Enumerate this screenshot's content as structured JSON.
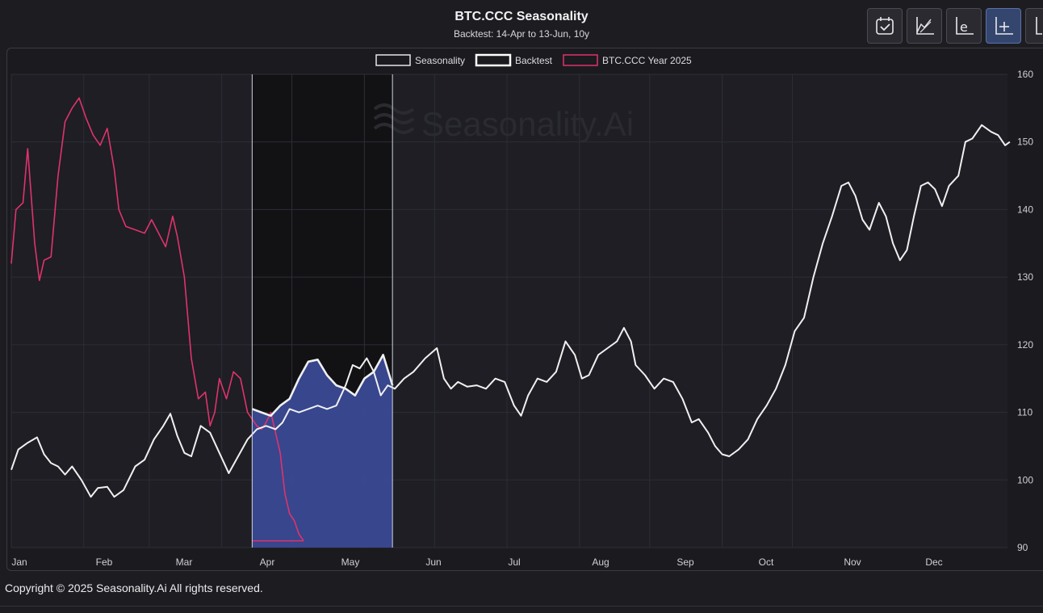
{
  "header": {
    "title": "BTC.CCC Seasonality",
    "subtitle": "Backtest: 14-Apr to 13-Jun, 10y"
  },
  "toolbar": {
    "buttons": [
      {
        "name": "calendar-check-icon",
        "active": false
      },
      {
        "name": "chart-area-icon",
        "active": false
      },
      {
        "name": "log-scale-icon",
        "active": false
      },
      {
        "name": "crosshair-plus-icon",
        "active": true
      },
      {
        "name": "axis-icon",
        "active": false
      }
    ]
  },
  "watermark": "Seasonality.Ai",
  "footer": {
    "copyright": "Copyright © 2025 Seasonality.Ai All rights reserved."
  },
  "colors": {
    "seasonality": "#f0f0f0",
    "backtest_fill": "#3a4a94",
    "year2025": "#e0336b",
    "grid": "#2d2d36",
    "plot_bg": "#1e1e24",
    "backtest_bg": "#121215"
  },
  "chart_data": {
    "type": "line",
    "legend": {
      "position": "top-center",
      "entries": [
        "Seasonality",
        "Backtest",
        "BTC.CCC Year 2025"
      ]
    },
    "x_months": [
      "Jan",
      "Feb",
      "Mar",
      "Apr",
      "May",
      "Jun",
      "Jul",
      "Aug",
      "Sep",
      "Oct",
      "Nov",
      "Dec"
    ],
    "y_axis": {
      "side": "right",
      "min": 90,
      "max": 160,
      "ticks": [
        90,
        100,
        110,
        120,
        130,
        140,
        150,
        160
      ]
    },
    "grid": true,
    "backtest_window": {
      "start_day": 104,
      "end_day": 164,
      "label": "14-Apr to 13-Jun"
    },
    "series": [
      {
        "name": "Seasonality",
        "points": [
          [
            1,
            101.5
          ],
          [
            4,
            104.5
          ],
          [
            8,
            105.5
          ],
          [
            12,
            106.3
          ],
          [
            15,
            103.8
          ],
          [
            18,
            102.5
          ],
          [
            21,
            102
          ],
          [
            24,
            100.8
          ],
          [
            27,
            102
          ],
          [
            31,
            100
          ],
          [
            35,
            97.5
          ],
          [
            38,
            98.8
          ],
          [
            42,
            99
          ],
          [
            45,
            97.5
          ],
          [
            49,
            98.5
          ],
          [
            54,
            102
          ],
          [
            58,
            103
          ],
          [
            62,
            106
          ],
          [
            66,
            108
          ],
          [
            69,
            109.8
          ],
          [
            72,
            106.5
          ],
          [
            75,
            104
          ],
          [
            78,
            103.5
          ],
          [
            82,
            108
          ],
          [
            86,
            107
          ],
          [
            90,
            104
          ],
          [
            94,
            101
          ],
          [
            98,
            103.5
          ],
          [
            102,
            106
          ],
          [
            106,
            107.5
          ],
          [
            110,
            108
          ],
          [
            114,
            107.5
          ],
          [
            117,
            108.5
          ],
          [
            120,
            110.5
          ],
          [
            124,
            110
          ],
          [
            128,
            110.5
          ],
          [
            132,
            111
          ],
          [
            136,
            110.5
          ],
          [
            140,
            111
          ],
          [
            144,
            114
          ],
          [
            147,
            117
          ],
          [
            150,
            116.5
          ],
          [
            153,
            118
          ],
          [
            156,
            116
          ],
          [
            159,
            112.5
          ],
          [
            162,
            114
          ],
          [
            165,
            113.5
          ],
          [
            169,
            115
          ],
          [
            173,
            116
          ],
          [
            178,
            118
          ],
          [
            183,
            119.5
          ],
          [
            186,
            115
          ],
          [
            189,
            113.5
          ],
          [
            192,
            114.5
          ],
          [
            196,
            113.8
          ],
          [
            200,
            114
          ],
          [
            204,
            113.5
          ],
          [
            208,
            115
          ],
          [
            212,
            114.5
          ],
          [
            216,
            111
          ],
          [
            219,
            109.5
          ],
          [
            222,
            112.5
          ],
          [
            226,
            115
          ],
          [
            230,
            114.5
          ],
          [
            234,
            116
          ],
          [
            238,
            120.5
          ],
          [
            242,
            118.5
          ],
          [
            245,
            115
          ],
          [
            248,
            115.5
          ],
          [
            252,
            118.5
          ],
          [
            256,
            119.5
          ],
          [
            260,
            120.5
          ],
          [
            263,
            122.5
          ],
          [
            266,
            120.5
          ],
          [
            268,
            117
          ],
          [
            272,
            115.5
          ],
          [
            276,
            113.5
          ],
          [
            280,
            115
          ],
          [
            284,
            114.5
          ],
          [
            288,
            112
          ],
          [
            292,
            108.5
          ],
          [
            295,
            109
          ],
          [
            299,
            107
          ],
          [
            302,
            105
          ],
          [
            305,
            103.8
          ],
          [
            308,
            103.5
          ],
          [
            312,
            104.5
          ],
          [
            316,
            106
          ],
          [
            320,
            109
          ],
          [
            324,
            111
          ],
          [
            328,
            113.5
          ],
          [
            332,
            117
          ],
          [
            336,
            122
          ],
          [
            340,
            124
          ],
          [
            344,
            130
          ],
          [
            348,
            135
          ],
          [
            352,
            139
          ],
          [
            356,
            143.5
          ],
          [
            359,
            144
          ],
          [
            362,
            142
          ],
          [
            365,
            138.5
          ],
          [
            368,
            137
          ],
          [
            372,
            141
          ],
          [
            375,
            139
          ],
          [
            378,
            135
          ],
          [
            381,
            132.5
          ],
          [
            384,
            134
          ],
          [
            387,
            139
          ],
          [
            390,
            143.5
          ],
          [
            393,
            144
          ],
          [
            396,
            143
          ],
          [
            399,
            140.5
          ],
          [
            402,
            143.5
          ],
          [
            406,
            145
          ],
          [
            409,
            150
          ],
          [
            412,
            150.5
          ],
          [
            416,
            152.5
          ],
          [
            420,
            151.5
          ],
          [
            423,
            151
          ],
          [
            426,
            149.5
          ],
          [
            428,
            150
          ]
        ]
      },
      {
        "name": "Backtest",
        "points": [
          [
            104,
            110.5
          ],
          [
            108,
            110
          ],
          [
            112,
            109.5
          ],
          [
            116,
            111
          ],
          [
            120,
            112
          ],
          [
            124,
            115
          ],
          [
            128,
            117.5
          ],
          [
            132,
            117.8
          ],
          [
            136,
            115.5
          ],
          [
            140,
            114
          ],
          [
            144,
            113.5
          ],
          [
            148,
            112.5
          ],
          [
            152,
            115
          ],
          [
            156,
            116
          ],
          [
            160,
            118.5
          ],
          [
            164,
            114
          ]
        ]
      },
      {
        "name": "BTC.CCC Year 2025",
        "points": [
          [
            1,
            132
          ],
          [
            3,
            140
          ],
          [
            6,
            141
          ],
          [
            8,
            149
          ],
          [
            11,
            135
          ],
          [
            13,
            129.5
          ],
          [
            15,
            132.5
          ],
          [
            18,
            133
          ],
          [
            21,
            145
          ],
          [
            24,
            153
          ],
          [
            27,
            155
          ],
          [
            30,
            156.5
          ],
          [
            33,
            153.5
          ],
          [
            36,
            151
          ],
          [
            39,
            149.5
          ],
          [
            42,
            152
          ],
          [
            45,
            146
          ],
          [
            47,
            140
          ],
          [
            50,
            137.5
          ],
          [
            54,
            137
          ],
          [
            58,
            136.5
          ],
          [
            61,
            138.5
          ],
          [
            64,
            136.5
          ],
          [
            67,
            134.5
          ],
          [
            70,
            139
          ],
          [
            72,
            136
          ],
          [
            75,
            130
          ],
          [
            78,
            118
          ],
          [
            81,
            112
          ],
          [
            84,
            113
          ],
          [
            86,
            108
          ],
          [
            88,
            110
          ],
          [
            90,
            115
          ],
          [
            93,
            112
          ],
          [
            96,
            116
          ],
          [
            99,
            115
          ],
          [
            102,
            110
          ],
          [
            104,
            109
          ],
          [
            106,
            108
          ],
          [
            108,
            107.5
          ],
          [
            110,
            108.5
          ],
          [
            112,
            110
          ],
          [
            114,
            107
          ],
          [
            116,
            104
          ],
          [
            118,
            98
          ],
          [
            120,
            95
          ],
          [
            122,
            94
          ],
          [
            124,
            92
          ],
          [
            126,
            91
          ]
        ]
      }
    ]
  }
}
